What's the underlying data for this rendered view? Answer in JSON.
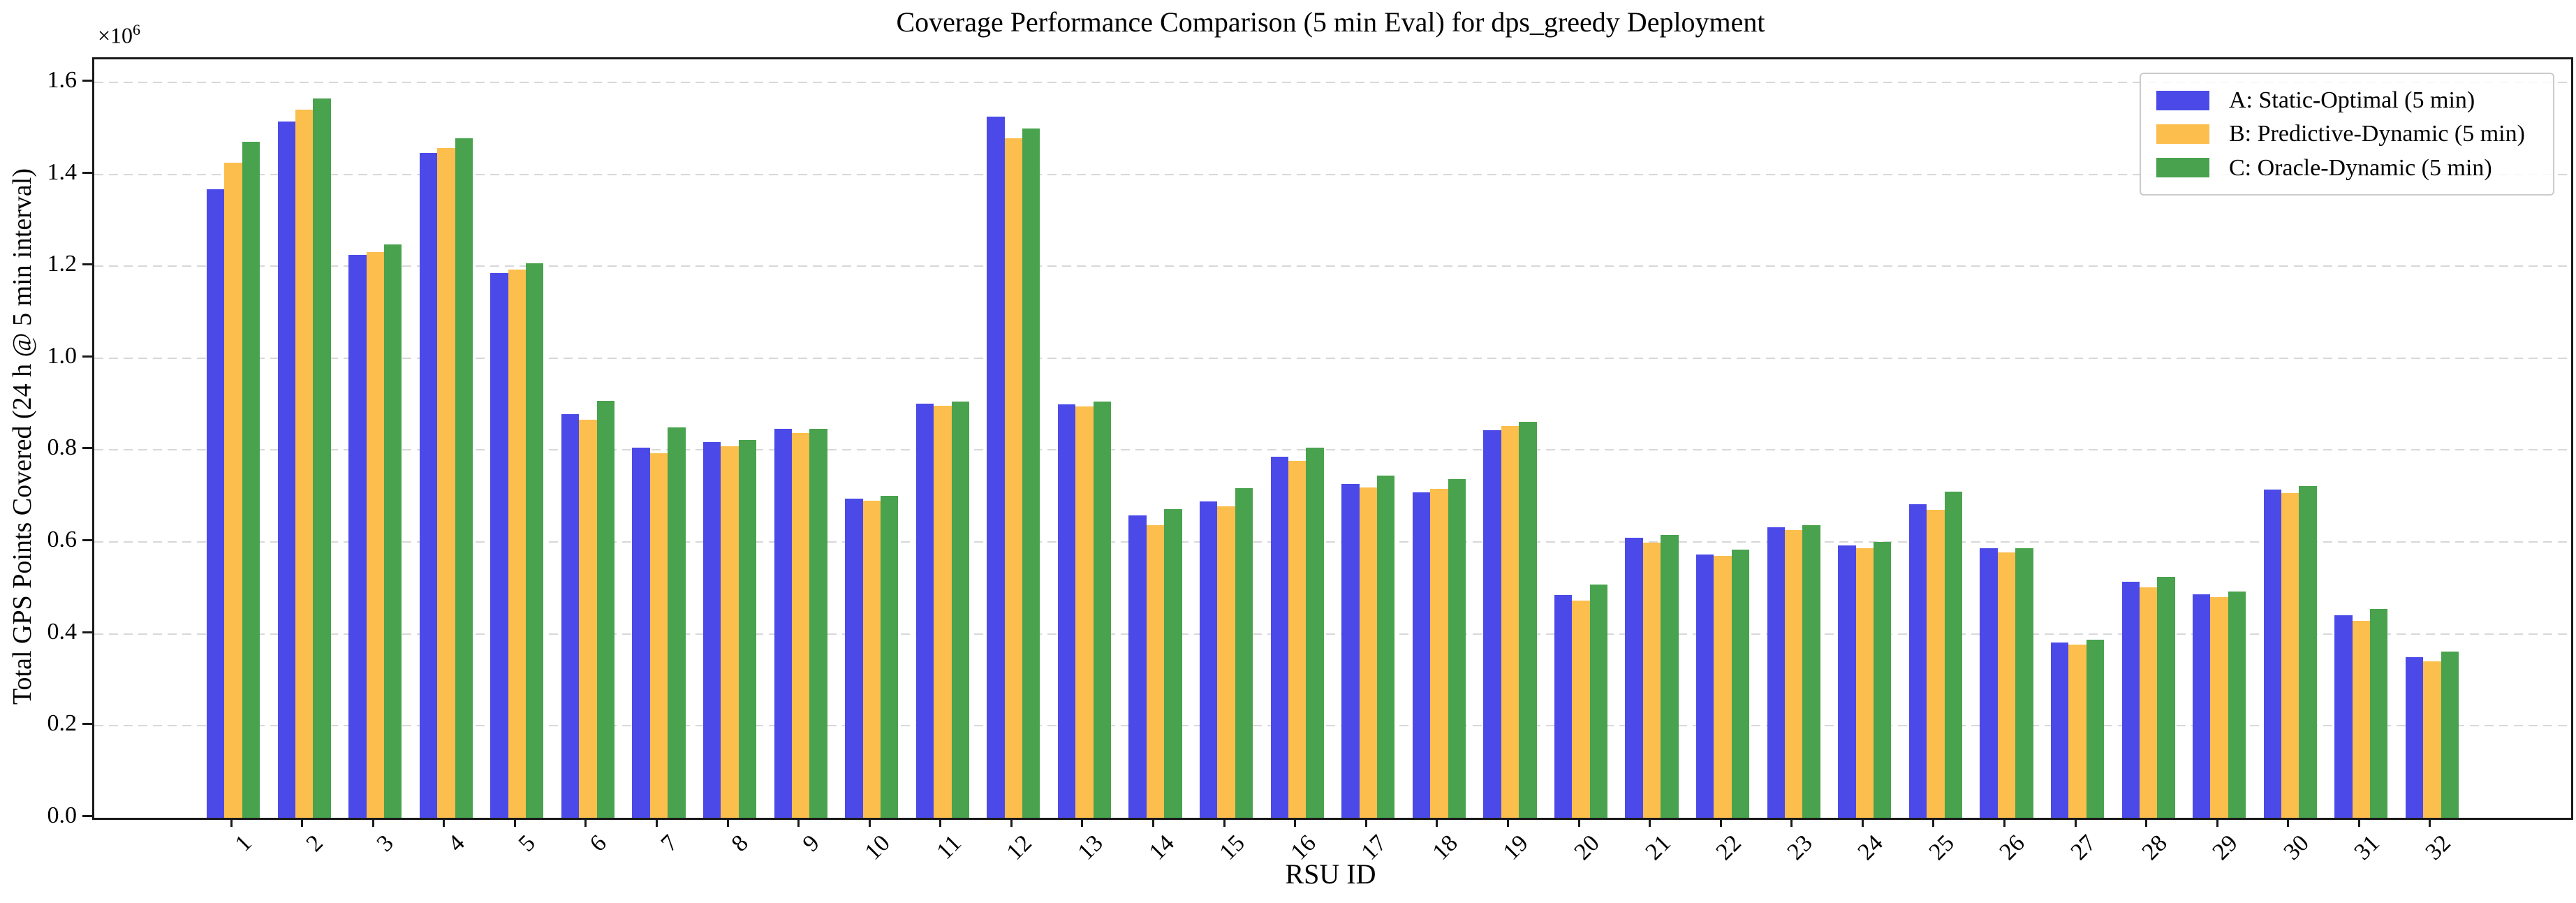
{
  "title": "Coverage Performance Comparison (5 min Eval) for dps_greedy Deployment",
  "axes": {
    "xlabel": "RSU ID",
    "ylabel": "Total GPS Points Covered (24 h @ 5 min interval)",
    "offset_base": "×10",
    "offset_exp": "6",
    "yticks": [
      "0.0",
      "0.2",
      "0.4",
      "0.6",
      "0.8",
      "1.0",
      "1.2",
      "1.4",
      "1.6"
    ]
  },
  "colors": {
    "series_a": "#4b4ae8",
    "series_b": "#fcbe4c",
    "series_c": "#49a24d",
    "grid": "#d8d8d8",
    "spine": "#1a1a1a"
  },
  "chart_data": {
    "type": "bar",
    "title": "Coverage Performance Comparison (5 min Eval) for dps_greedy Deployment",
    "xlabel": "RSU ID",
    "ylabel": "Total GPS Points Covered (24 h @ 5 min interval)",
    "value_unit": "×10^6 GPS points",
    "ylim": [
      0,
      1.65
    ],
    "grid": "horizontal dashed",
    "legend_position": "upper right",
    "categories": [
      "1",
      "2",
      "3",
      "4",
      "5",
      "6",
      "7",
      "8",
      "9",
      "10",
      "11",
      "12",
      "13",
      "14",
      "15",
      "16",
      "17",
      "18",
      "19",
      "20",
      "21",
      "22",
      "23",
      "24",
      "25",
      "26",
      "27",
      "28",
      "29",
      "30",
      "31",
      "32"
    ],
    "series": [
      {
        "name": "A: Static-Optimal (5 min)",
        "color": "#4b4ae8",
        "values": [
          1.368,
          1.515,
          1.225,
          1.447,
          1.185,
          0.878,
          0.806,
          0.818,
          0.847,
          0.694,
          0.901,
          1.525,
          0.9,
          0.658,
          0.688,
          0.786,
          0.727,
          0.708,
          0.843,
          0.485,
          0.61,
          0.573,
          0.632,
          0.592,
          0.682,
          0.586,
          0.381,
          0.514,
          0.486,
          0.714,
          0.441,
          0.349
        ]
      },
      {
        "name": "B: Predictive-Dynamic (5 min)",
        "color": "#fcbe4c",
        "values": [
          1.425,
          1.54,
          1.23,
          1.457,
          1.192,
          0.866,
          0.793,
          0.808,
          0.837,
          0.69,
          0.896,
          1.478,
          0.895,
          0.637,
          0.678,
          0.777,
          0.718,
          0.716,
          0.852,
          0.473,
          0.598,
          0.57,
          0.626,
          0.586,
          0.67,
          0.578,
          0.377,
          0.502,
          0.48,
          0.706,
          0.428,
          0.341
        ]
      },
      {
        "name": "C: Oracle-Dynamic (5 min)",
        "color": "#49a24d",
        "values": [
          1.47,
          1.565,
          1.248,
          1.478,
          1.207,
          0.907,
          0.849,
          0.822,
          0.846,
          0.701,
          0.906,
          1.5,
          0.905,
          0.672,
          0.717,
          0.805,
          0.744,
          0.737,
          0.862,
          0.508,
          0.616,
          0.583,
          0.637,
          0.6,
          0.71,
          0.586,
          0.388,
          0.524,
          0.492,
          0.722,
          0.455,
          0.362
        ]
      }
    ]
  }
}
